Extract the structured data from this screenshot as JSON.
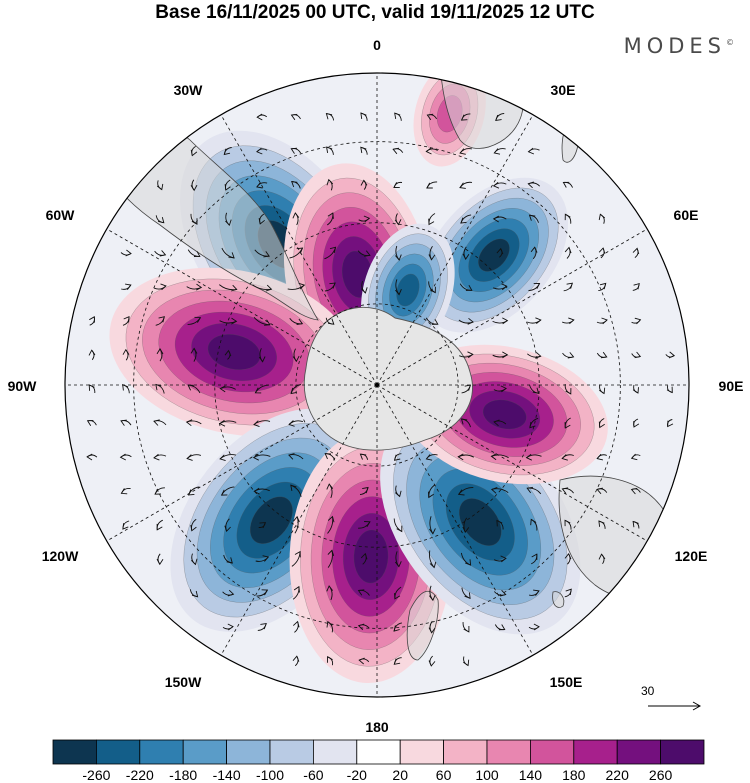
{
  "title": "Base 16/11/2025 00 UTC, valid 19/11/2025 12 UTC",
  "brand": "MODES",
  "brand_mark": "©",
  "longitude_labels": {
    "lon_0": "0",
    "lon_30e": "30E",
    "lon_60e": "60E",
    "lon_90e": "90E",
    "lon_120e": "120E",
    "lon_150e": "150E",
    "lon_180": "180",
    "lon_150w": "150W",
    "lon_120w": "120W",
    "lon_90w": "90W",
    "lon_60w": "60W",
    "lon_30w": "30W"
  },
  "reference_vector": {
    "value": "30"
  },
  "colorbar": {
    "labels": [
      "-260",
      "-220",
      "-180",
      "-140",
      "-100",
      "-60",
      "-20",
      "20",
      "60",
      "100",
      "140",
      "180",
      "220",
      "260"
    ],
    "colors": [
      "#0d3550",
      "#135e89",
      "#2f7fb0",
      "#5a9cc8",
      "#8db5d9",
      "#b9cbe4",
      "#e2e4f0",
      "#ffffff",
      "#f8d9df",
      "#f3b3c6",
      "#e886b0",
      "#d2549c",
      "#a7208c",
      "#74107e",
      "#4d0c6b"
    ]
  },
  "anomaly_centers": [
    {
      "name": "negative-south-atlantic",
      "sign": -1,
      "lon": 325,
      "colat": 0.55,
      "level": 14
    },
    {
      "name": "positive-weddell",
      "sign": 1,
      "lon": 350,
      "colat": 0.36,
      "level": 12
    },
    {
      "name": "positive-southeast-pacific",
      "sign": 1,
      "lon": 283,
      "colat": 0.47,
      "level": 14
    },
    {
      "name": "negative-south-pacific-east",
      "sign": -1,
      "lon": 218,
      "colat": 0.55,
      "level": 14
    },
    {
      "name": "positive-ross-sea",
      "sign": 1,
      "lon": 182,
      "colat": 0.55,
      "level": 14
    },
    {
      "name": "negative-tasman",
      "sign": -1,
      "lon": 143,
      "colat": 0.55,
      "level": 14
    },
    {
      "name": "positive-south-indian-east",
      "sign": 1,
      "lon": 103,
      "colat": 0.42,
      "level": 11
    },
    {
      "name": "negative-south-indian-west",
      "sign": -1,
      "lon": 42,
      "colat": 0.56,
      "level": 9
    },
    {
      "name": "negative-east-antarctic-coast",
      "sign": -1,
      "lon": 18,
      "colat": 0.32,
      "level": 6
    },
    {
      "name": "positive-southern-africa",
      "sign": 1,
      "lon": 15,
      "colat": 0.9,
      "level": 4
    }
  ]
}
